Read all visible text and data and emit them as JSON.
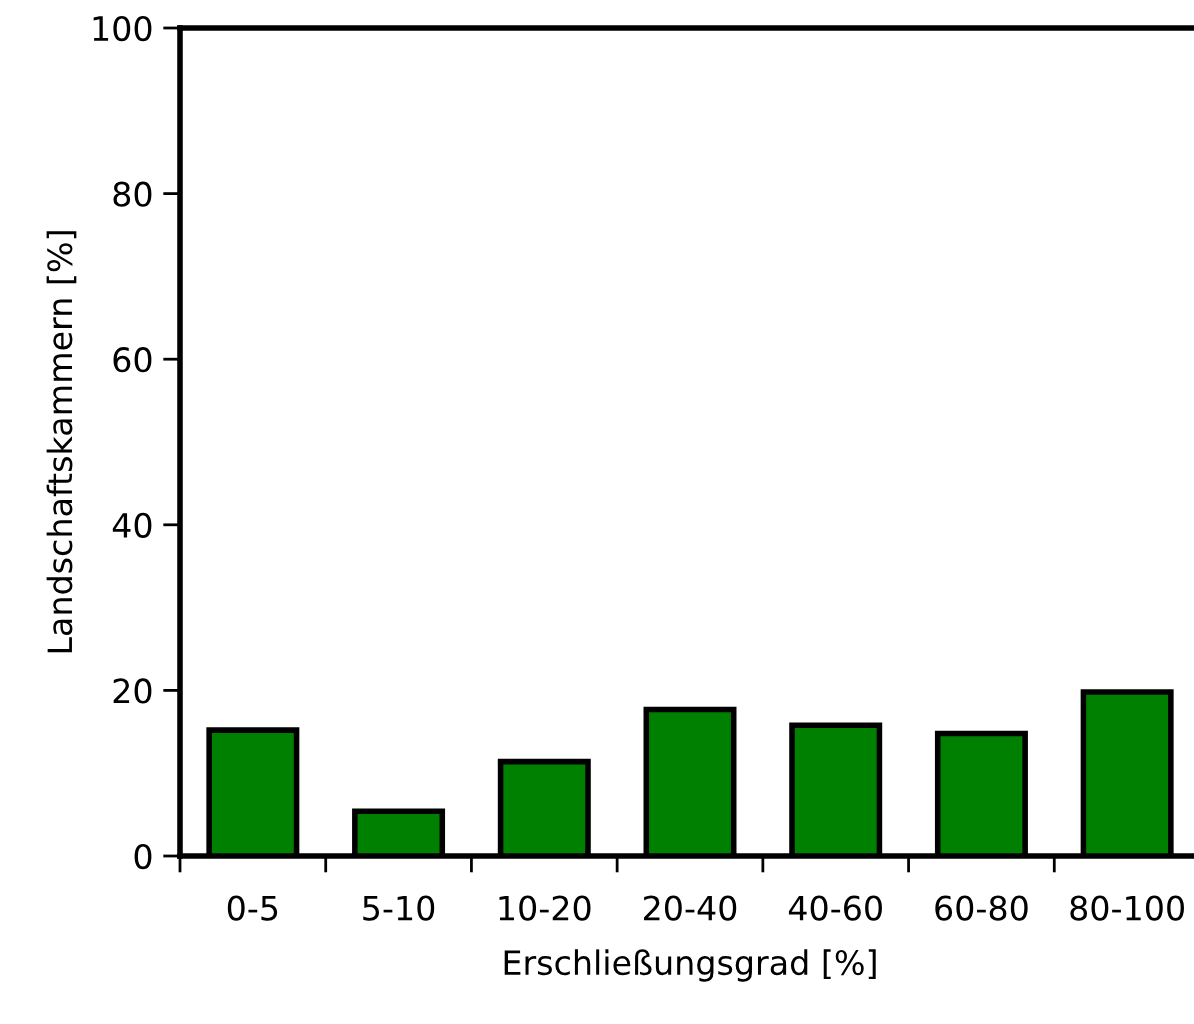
{
  "chart_data": {
    "type": "bar",
    "xlabel": "Erschließungsgrad [%]",
    "ylabel": "Landschaftskammern [%]",
    "categories": [
      "0-5",
      "5-10",
      "10-20",
      "20-40",
      "40-60",
      "60-80",
      "80-100"
    ],
    "values": [
      15.2,
      5.4,
      11.4,
      17.7,
      15.8,
      14.8,
      19.8
    ],
    "color": "#008000",
    "ylim": [
      0,
      100
    ],
    "yticks": [
      0,
      20,
      40,
      60,
      80,
      100
    ],
    "grid": false,
    "legend": false
  }
}
